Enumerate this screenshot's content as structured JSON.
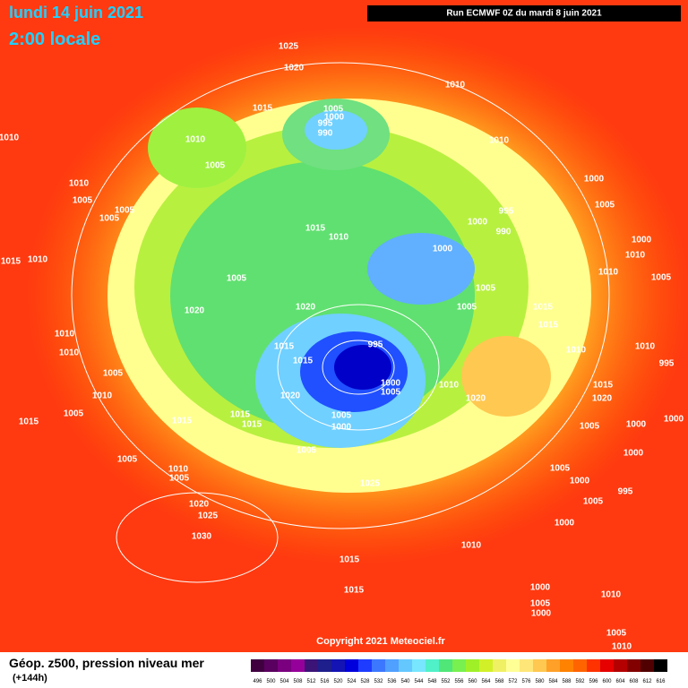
{
  "header": {
    "date": "lundi 14 juin 2021",
    "time": "2:00 locale",
    "run": "Run ECMWF 0Z du mardi 8 juin 2021"
  },
  "copyright": "Copyright 2021 Meteociel.fr",
  "footer": {
    "title": "Géop. z500, pression niveau mer",
    "lead": "(+144h)"
  },
  "colorbar": {
    "ticks": [
      496,
      500,
      504,
      508,
      512,
      516,
      520,
      524,
      528,
      532,
      536,
      540,
      544,
      548,
      552,
      556,
      560,
      564,
      568,
      572,
      576,
      580,
      584,
      588,
      592,
      596,
      600,
      604,
      608,
      612,
      616
    ],
    "colors": [
      "#400040",
      "#5a0060",
      "#7a0080",
      "#96009a",
      "#3c1478",
      "#1e1e8c",
      "#1414b4",
      "#0000dc",
      "#1e3cff",
      "#3c78ff",
      "#50a0ff",
      "#64c8ff",
      "#78e6ff",
      "#50f0c8",
      "#50e678",
      "#78f050",
      "#a0f028",
      "#d2f028",
      "#f0f064",
      "#ffff96",
      "#ffe678",
      "#ffc850",
      "#ffa028",
      "#ff8200",
      "#ff6400",
      "#ff3200",
      "#e60000",
      "#b40000",
      "#820000",
      "#500000",
      "#000000"
    ]
  },
  "isobar_labels": [
    "1025",
    "1020",
    "1010",
    "1015",
    "1005",
    "1000",
    "995",
    "990",
    "1010",
    "1010",
    "1010",
    "1005",
    "1010",
    "1005",
    "1005",
    "1005",
    "1000",
    "1005",
    "995",
    "1000",
    "990",
    "1015",
    "1010",
    "1000",
    "1000",
    "1010",
    "1015",
    "1010",
    "1010",
    "1005",
    "1005",
    "1005",
    "1005",
    "1020",
    "1020",
    "1015",
    "1015",
    "1010",
    "1010",
    "1015",
    "995",
    "1010",
    "1010",
    "995",
    "1015",
    "1005",
    "1000",
    "1005",
    "1010",
    "1020",
    "1020",
    "1010",
    "1015",
    "1020",
    "1005",
    "1005",
    "1000",
    "1015",
    "1015",
    "1015",
    "1015",
    "1000",
    "1000",
    "1005",
    "1005",
    "1005",
    "1000",
    "1005",
    "1010",
    "1005",
    "1025",
    "1000",
    "995",
    "1005",
    "1020",
    "1025",
    "1000",
    "1030",
    "1010",
    "1015",
    "1000",
    "1015",
    "1010",
    "1005",
    "1000",
    "1005",
    "1010"
  ]
}
